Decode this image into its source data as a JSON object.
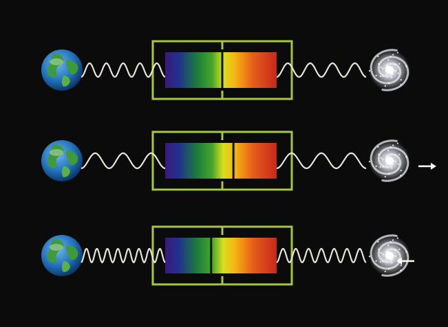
{
  "colors": {
    "background": "#0b0b0b",
    "frame": "#a9c73a",
    "wave": "#e8e4d8",
    "arrow": "#ffffff",
    "spectral_line": "#111111",
    "ocean": "#1f6fb8",
    "land": "#3e9a3a"
  },
  "icons": {
    "earth": "earth-icon",
    "galaxy": "spiral-galaxy-icon",
    "arrow_away": "arrow-right-icon",
    "arrow_toward": "arrow-left-icon"
  },
  "rows": [
    {
      "motion": "stationary",
      "line_shift": 0.0,
      "waves_left": 5,
      "waves_right": 4,
      "arrow": "none"
    },
    {
      "motion": "receding",
      "line_shift": 0.1,
      "waves_left": 3,
      "waves_right": 3,
      "arrow": "right"
    },
    {
      "motion": "approaching",
      "line_shift": -0.1,
      "waves_left": 8,
      "waves_right": 7,
      "arrow": "left"
    }
  ]
}
